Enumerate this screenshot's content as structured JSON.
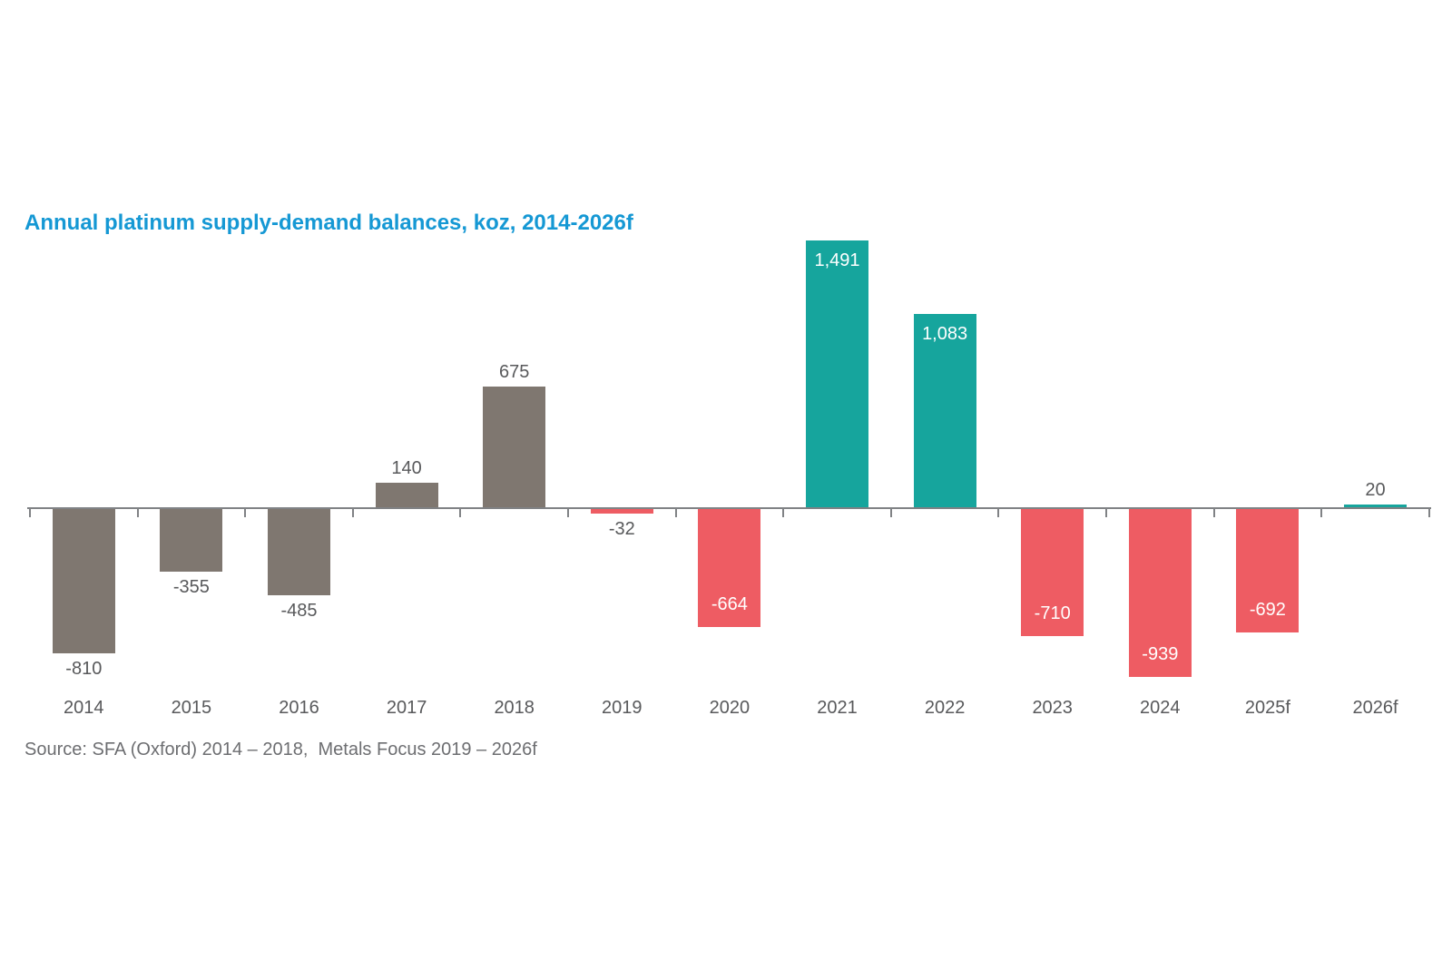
{
  "chart_data": {
    "type": "bar",
    "title": "Annual platinum supply-demand balances, koz, 2014-2026f",
    "source": "Source: SFA (Oxford) 2014 – 2018,  Metals Focus 2019 – 2026f",
    "xlabel": "",
    "ylabel": "koz",
    "categories": [
      "2014",
      "2015",
      "2016",
      "2017",
      "2018",
      "2019",
      "2020",
      "2021",
      "2022",
      "2023",
      "2024",
      "2025f",
      "2026f"
    ],
    "values": [
      -810,
      -355,
      -485,
      140,
      675,
      -32,
      -664,
      1491,
      1083,
      -710,
      -939,
      -692,
      20
    ],
    "value_labels": [
      "-810",
      "-355",
      "-485",
      "140",
      "675",
      "-32",
      "-664",
      "1,491",
      "1,083",
      "-710",
      "-939",
      "-692",
      "20"
    ],
    "bar_colors": [
      "grey",
      "grey",
      "grey",
      "grey",
      "grey",
      "red",
      "red",
      "teal",
      "teal",
      "red",
      "red",
      "red",
      "teal"
    ],
    "label_placement": [
      "below",
      "below",
      "below",
      "above",
      "above",
      "below",
      "inside-bottom",
      "inside-top",
      "inside-top",
      "inside-bottom",
      "inside-bottom",
      "inside-bottom",
      "above"
    ],
    "ylim": [
      -1000,
      1550
    ],
    "grid": false,
    "legend": "none",
    "y_axis_visible": false,
    "colors": {
      "grey": "#7F7770",
      "teal": "#16A59D",
      "red": "#EE5C63",
      "title": "#1598D4",
      "label_dark": "#58595B",
      "label_light": "#FFFFFF",
      "source_text": "#6D6E71",
      "axis": "#808285"
    }
  }
}
